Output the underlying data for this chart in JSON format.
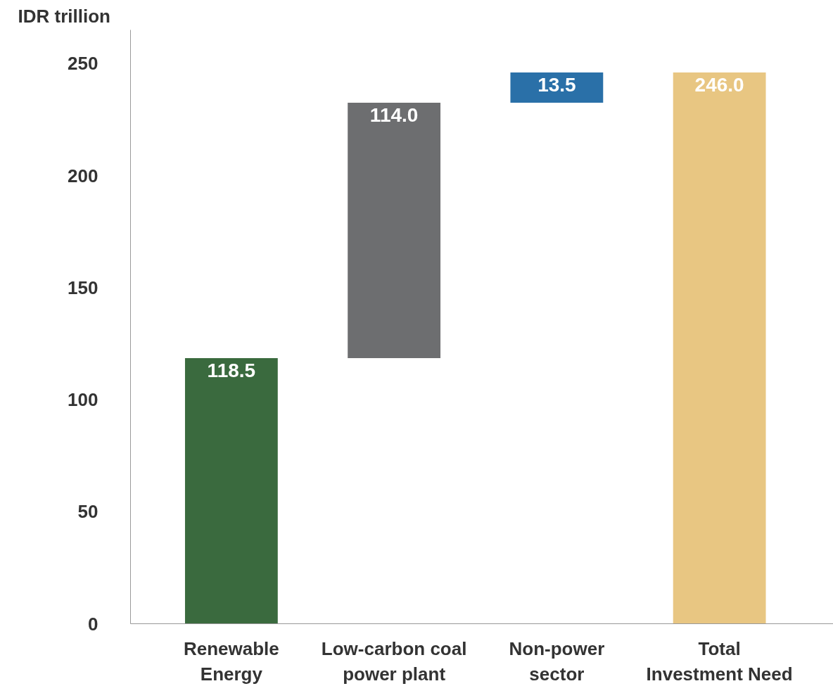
{
  "chart_data": {
    "type": "bar",
    "ylabel": "IDR trillion",
    "categories": [
      "Renewable Energy",
      "Low-carbon coal power plant",
      "Non-power sector",
      "Total Investment Need"
    ],
    "values": [
      118.5,
      114.0,
      13.5,
      246.0
    ],
    "base": [
      0,
      118.5,
      232.5,
      0
    ],
    "colors": [
      "#3a6a3e",
      "#6d6e70",
      "#2a70a8",
      "#e8c682"
    ],
    "value_labels": [
      "118.5",
      "114.0",
      "13.5",
      "246.0"
    ],
    "ylim": [
      0,
      265
    ],
    "yticks": [
      0,
      50,
      100,
      150,
      200,
      250
    ],
    "grid": false
  }
}
